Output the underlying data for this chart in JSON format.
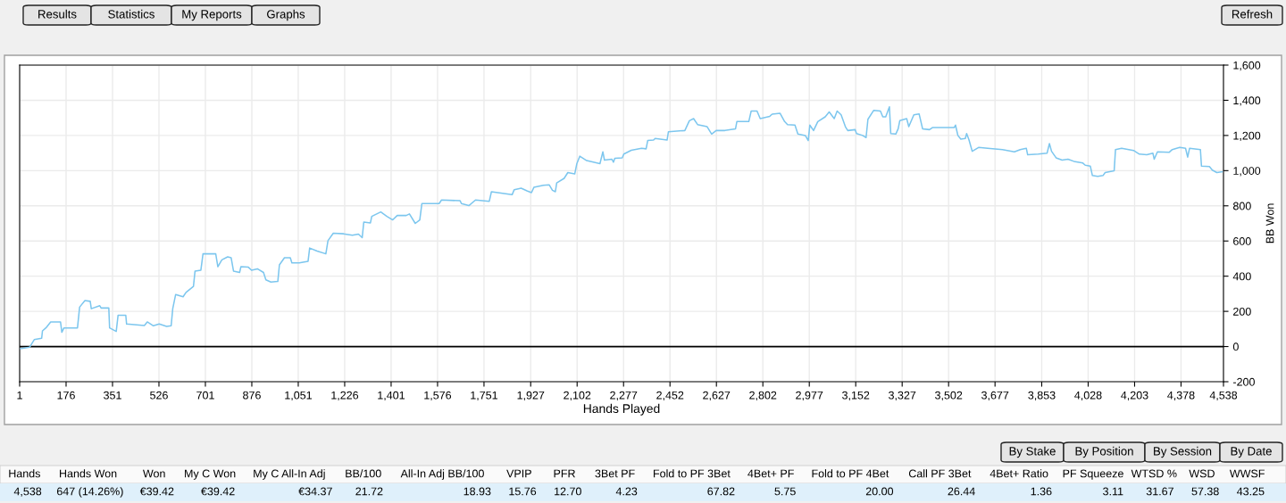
{
  "chart_data": [
    {
      "type": "line",
      "xlabel": "Hands Played",
      "ylabel": "BB Won",
      "grid": true,
      "xlim": [
        1,
        4538
      ],
      "ylim": [
        -200,
        1600
      ],
      "xticks": [
        1,
        176,
        351,
        526,
        701,
        876,
        {
          "value": 1051,
          "label": "1,051"
        },
        {
          "value": 1226,
          "label": "1,226"
        },
        {
          "value": 1401,
          "label": "1,401"
        },
        {
          "value": 1576,
          "label": "1,576"
        },
        {
          "value": 1751,
          "label": "1,751"
        },
        {
          "value": 1927,
          "label": "1,927"
        },
        {
          "value": 2102,
          "label": "2,102"
        },
        {
          "value": 2277,
          "label": "2,277"
        },
        {
          "value": 2452,
          "label": "2,452"
        },
        {
          "value": 2627,
          "label": "2,627"
        },
        {
          "value": 2802,
          "label": "2,802"
        },
        {
          "value": 2977,
          "label": "2,977"
        },
        {
          "value": 3152,
          "label": "3,152"
        },
        {
          "value": 3327,
          "label": "3,327"
        },
        {
          "value": 3502,
          "label": "3,502"
        },
        {
          "value": 3677,
          "label": "3,677"
        },
        {
          "value": 3853,
          "label": "3,853"
        },
        {
          "value": 4028,
          "label": "4,028"
        },
        {
          "value": 4203,
          "label": "4,203"
        },
        {
          "value": 4378,
          "label": "4,378"
        },
        {
          "value": 4538,
          "label": "4,538"
        }
      ],
      "yticks": [
        -200,
        0,
        200,
        400,
        600,
        800,
        {
          "value": 1000,
          "label": "1,000"
        },
        {
          "value": 1200,
          "label": "1,200"
        },
        {
          "value": 1400,
          "label": "1,400"
        },
        {
          "value": 1600,
          "label": "1,600"
        }
      ],
      "ref_lines": [
        {
          "axis": "y",
          "value": 0,
          "color": "#000000"
        }
      ],
      "x": [
        5,
        39,
        56,
        84,
        87,
        100,
        118,
        155,
        160,
        168,
        219,
        227,
        247,
        267,
        271,
        303,
        308,
        337,
        340,
        365,
        372,
        401,
        404,
        471,
        482,
        505,
        527,
        555,
        572,
        578,
        589,
        617,
        628,
        656,
        662,
        684,
        692,
        740,
        748,
        763,
        785,
        798,
        807,
        830,
        835,
        863,
        875,
        897,
        920,
        929,
        948,
        974,
        980,
        999,
        1021,
        1027,
        1055,
        1088,
        1094,
        1122,
        1155,
        1163,
        1183,
        1222,
        1255,
        1278,
        1292,
        1298,
        1323,
        1328,
        1362,
        1385,
        1407,
        1424,
        1458,
        1470,
        1492,
        1509,
        1517,
        1537,
        1582,
        1591,
        1661,
        1666,
        1694,
        1719,
        1771,
        1779,
        1857,
        1865,
        1891,
        1913,
        1930,
        1939,
        1975,
        1997,
        2009,
        2020,
        2025,
        2053,
        2067,
        2093,
        2101,
        2112,
        2138,
        2188,
        2199,
        2205,
        2233,
        2239,
        2244,
        2272,
        2278,
        2306,
        2345,
        2362,
        2368,
        2390,
        2396,
        2441,
        2446,
        2508,
        2525,
        2541,
        2556,
        2592,
        2609,
        2626,
        2659,
        2699,
        2704,
        2749,
        2758,
        2780,
        2792,
        2828,
        2837,
        2867,
        2884,
        2895,
        2923,
        2934,
        2962,
        2973,
        2979,
        2993,
        3009,
        3037,
        3052,
        3071,
        3082,
        3097,
        3113,
        3122,
        3150,
        3155,
        3178,
        3191,
        3198,
        3220,
        3245,
        3254,
        3265,
        3279,
        3284,
        3303,
        3312,
        3318,
        3344,
        3352,
        3371,
        3391,
        3404,
        3430,
        3441,
        3523,
        3528,
        3537,
        3548,
        3565,
        3570,
        3579,
        3591,
        3615,
        3649,
        3705,
        3750,
        3772,
        3795,
        3800,
        3840,
        3873,
        3882,
        3890,
        3907,
        3930,
        3952,
        3974,
        4008,
        4017,
        4036,
        4044,
        4064,
        4084,
        4092,
        4126,
        4131,
        4154,
        4199,
        4221,
        4249,
        4272,
        4277,
        4289,
        4333,
        4345,
        4373,
        4395,
        4403,
        4410,
        4451,
        4455,
        4485,
        4496,
        4513,
        4533
      ],
      "series": [
        {
          "color": "#7cc6ee",
          "values": [
            -12,
            -3,
            39,
            47,
            89,
            106,
            140,
            140,
            81,
            106,
            106,
            224,
            261,
            257,
            215,
            232,
            219,
            219,
            106,
            86,
            178,
            178,
            128,
            119,
            140,
            118,
            128,
            114,
            118,
            215,
            296,
            283,
            308,
            342,
            429,
            434,
            527,
            527,
            454,
            493,
            510,
            505,
            429,
            421,
            454,
            451,
            434,
            442,
            421,
            379,
            367,
            370,
            464,
            505,
            505,
            476,
            476,
            485,
            560,
            543,
            527,
            602,
            644,
            641,
            633,
            639,
            619,
            708,
            703,
            740,
            765,
            740,
            720,
            745,
            745,
            754,
            700,
            720,
            813,
            813,
            813,
            833,
            829,
            813,
            801,
            833,
            826,
            880,
            863,
            892,
            900,
            885,
            875,
            905,
            917,
            919,
            888,
            880,
            930,
            956,
            989,
            981,
            1040,
            1082,
            1057,
            1040,
            1107,
            1060,
            1065,
            1048,
            1070,
            1073,
            1094,
            1116,
            1127,
            1124,
            1171,
            1174,
            1183,
            1174,
            1221,
            1228,
            1284,
            1296,
            1262,
            1250,
            1208,
            1228,
            1228,
            1238,
            1279,
            1279,
            1339,
            1339,
            1296,
            1309,
            1321,
            1326,
            1279,
            1262,
            1259,
            1208,
            1200,
            1171,
            1259,
            1228,
            1279,
            1306,
            1334,
            1296,
            1339,
            1317,
            1250,
            1228,
            1233,
            1211,
            1200,
            1188,
            1292,
            1343,
            1339,
            1306,
            1306,
            1363,
            1211,
            1208,
            1238,
            1284,
            1296,
            1250,
            1317,
            1322,
            1238,
            1233,
            1245,
            1245,
            1259,
            1200,
            1179,
            1183,
            1211,
            1174,
            1110,
            1132,
            1127,
            1120,
            1107,
            1120,
            1127,
            1090,
            1094,
            1099,
            1154,
            1110,
            1073,
            1060,
            1065,
            1053,
            1043,
            1031,
            1026,
            972,
            967,
            972,
            989,
            999,
            1120,
            1127,
            1115,
            1094,
            1090,
            1099,
            1065,
            1107,
            1104,
            1120,
            1132,
            1127,
            1077,
            1127,
            1120,
            1026,
            1023,
            1003,
            989,
            993
          ]
        }
      ]
    },
    {
      "type": "other",
      "annotations": [
        "Results",
        "Statistics",
        "My Reports",
        "Graphs",
        "Refresh",
        "By Stake",
        "By Position",
        "By Session",
        "By Date"
      ],
      "categories": [
        "Hands",
        "Hands Won",
        "Won",
        "My C Won",
        "My C All-In Adj",
        "BB/100",
        "All-In Adj BB/100",
        "VPIP",
        "PFR",
        "3Bet PF",
        "Fold to PF 3Bet",
        "4Bet+ PF",
        "Fold to PF 4Bet",
        "Call PF 3Bet",
        "4Bet+ Ratio",
        "PF Squeeze",
        "WTSD %",
        "WSD",
        "WWSF"
      ],
      "value_labels": [
        "4,538",
        "647 (14.26%)",
        "€39.42",
        "€39.42",
        "€34.37",
        "21.72",
        "18.93",
        "15.76",
        "12.70",
        "4.23",
        "67.82",
        "5.75",
        "20.00",
        "26.44",
        "1.36",
        "3.11",
        "31.67",
        "57.38",
        "43.25"
      ]
    }
  ]
}
